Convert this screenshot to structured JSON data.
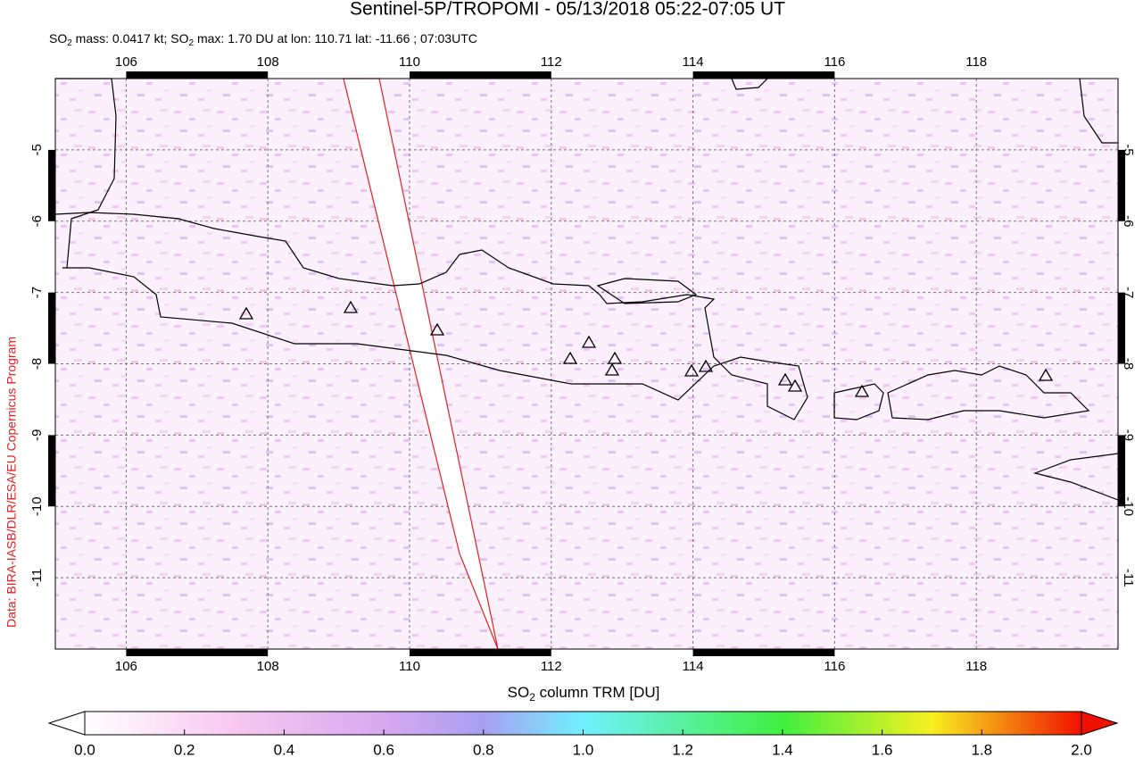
{
  "map": {
    "title": "Sentinel-5P/TROPOMI - 05/13/2018 05:22-07:05 UT",
    "subtitle": [
      "SO",
      "2",
      " mass: 0.0417 kt; SO",
      "2",
      " max: 1.70 DU at lon: 110.71 lat: -11.66 ; 07:03UTC"
    ],
    "credit": "Data: BIRA-IASB/DLR/ESA/EU Copernicus Program",
    "lonlim": [
      105,
      120
    ],
    "latlim": [
      -12,
      -4
    ],
    "lonticks": [
      106,
      108,
      110,
      112,
      114,
      116,
      118
    ],
    "latticks": [
      -5,
      -6,
      -7,
      -8,
      -9,
      -10,
      -11
    ],
    "colorbar": {
      "label": [
        "SO",
        "2",
        " column TRM [DU]"
      ],
      "lim": [
        0,
        2
      ],
      "ticks": [
        {
          "value": 0,
          "label": "0.0"
        },
        {
          "value": 0.2,
          "label": "0.2"
        },
        {
          "value": 0.4,
          "label": "0.4"
        },
        {
          "value": 0.6,
          "label": "0.6"
        },
        {
          "value": 0.8,
          "label": "0.8"
        },
        {
          "value": 1,
          "label": "1.0"
        },
        {
          "value": 1.2,
          "label": "1.2"
        },
        {
          "value": 1.4,
          "label": "1.4"
        },
        {
          "value": 1.6,
          "label": "1.6"
        },
        {
          "value": 1.8,
          "label": "1.8"
        },
        {
          "value": 2,
          "label": "2.0"
        }
      ]
    }
  }
}
